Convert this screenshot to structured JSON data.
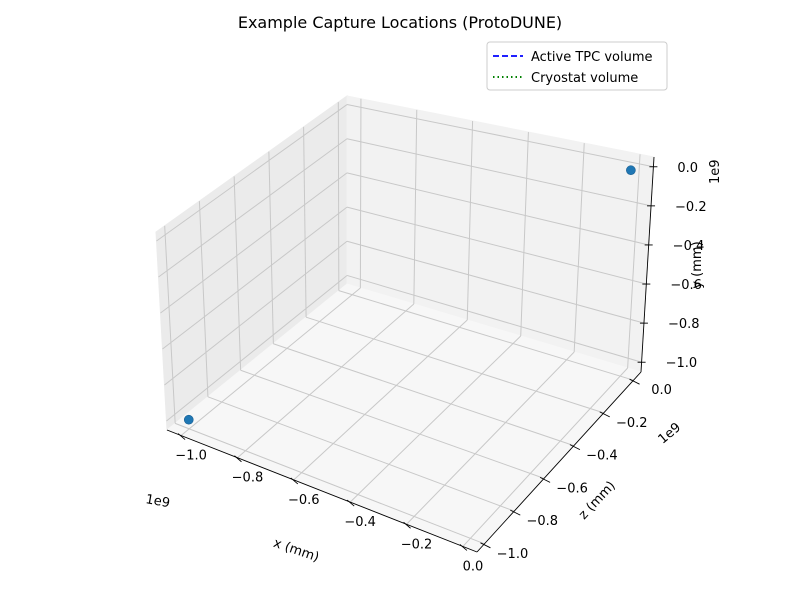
{
  "chart_data": {
    "type": "scatter",
    "title": "Example Capture Locations (ProtoDUNE)",
    "projection": "3d",
    "xlabel": "x (mm)",
    "ylabel": "y (mm)",
    "zlabel": "z (mm)",
    "x_offset_label": "1e9",
    "y_offset_label": "1e9",
    "z_offset_label": "1e9",
    "xlim": [
      -1.05,
      0.05
    ],
    "ylim": [
      -1.05,
      0.05
    ],
    "zlim": [
      -1.05,
      0.05
    ],
    "x_ticks": [
      "−1.0",
      "−0.8",
      "−0.6",
      "−0.4",
      "−0.2",
      "0.0"
    ],
    "y_ticks": [
      "−1.0",
      "−0.8",
      "−0.6",
      "−0.4",
      "−0.2",
      "0.0"
    ],
    "z_ticks": [
      "−1.0",
      "−0.8",
      "−0.6",
      "−0.4",
      "−0.2",
      "0.0"
    ],
    "grid": true,
    "legend_position": "top-right",
    "legend": [
      {
        "label": "Active TPC volume",
        "color": "#0000ff",
        "style": "dashed"
      },
      {
        "label": "Cryostat volume",
        "color": "#008000",
        "style": "dotted"
      }
    ],
    "points": [
      {
        "x": -1.0,
        "y": -1.0,
        "z": -1.0
      },
      {
        "x": 0.0,
        "y": 0.0,
        "z": 0.0
      }
    ],
    "marker_color": "#1f77b4"
  }
}
